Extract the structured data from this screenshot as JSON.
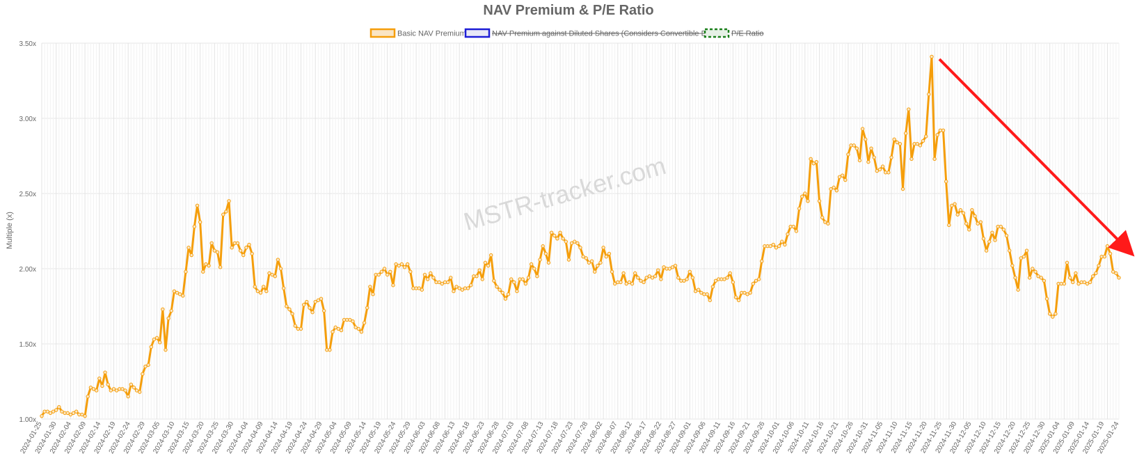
{
  "chart_data": {
    "type": "line",
    "title": "NAV Premium & P/E Ratio",
    "ylabel": "Multiple (x)",
    "xlabel": "",
    "ylim": [
      1.0,
      3.5
    ],
    "y_ticks": [
      "1.00x",
      "1.50x",
      "2.00x",
      "2.50x",
      "3.00x",
      "3.50x"
    ],
    "x_ticks": [
      "2024-01-25",
      "2024-01-30",
      "2024-02-04",
      "2024-02-09",
      "2024-02-14",
      "2024-02-19",
      "2024-02-24",
      "2024-02-29",
      "2024-03-05",
      "2024-03-10",
      "2024-03-15",
      "2024-03-20",
      "2024-03-25",
      "2024-03-30",
      "2024-04-04",
      "2024-04-09",
      "2024-04-14",
      "2024-04-19",
      "2024-04-24",
      "2024-04-29",
      "2024-05-04",
      "2024-05-09",
      "2024-05-14",
      "2024-05-19",
      "2024-05-24",
      "2024-05-29",
      "2024-06-03",
      "2024-06-08",
      "2024-06-13",
      "2024-06-18",
      "2024-06-23",
      "2024-06-28",
      "2024-07-03",
      "2024-07-08",
      "2024-07-13",
      "2024-07-18",
      "2024-07-23",
      "2024-07-28",
      "2024-08-02",
      "2024-08-07",
      "2024-08-12",
      "2024-08-17",
      "2024-08-22",
      "2024-08-27",
      "2024-09-01",
      "2024-09-06",
      "2024-09-11",
      "2024-09-16",
      "2024-09-21",
      "2024-09-26",
      "2024-10-01",
      "2024-10-06",
      "2024-10-11",
      "2024-10-16",
      "2024-10-21",
      "2024-10-26",
      "2024-10-31",
      "2024-11-05",
      "2024-11-10",
      "2024-11-15",
      "2024-11-20",
      "2024-11-25",
      "2024-11-30",
      "2024-12-05",
      "2024-12-10",
      "2024-12-15",
      "2024-12-20",
      "2024-12-25",
      "2024-12-30",
      "2025-01-04",
      "2025-01-09",
      "2025-01-14",
      "2025-01-19",
      "2025-01-24"
    ],
    "grid": true,
    "legend_position": "top-center",
    "watermark": "MSTR-tracker.com",
    "annotation": "red downward arrow from the late-November 2024 peak toward the right edge",
    "series": [
      {
        "name": "Basic NAV Premium",
        "color": "#f59e0b",
        "hidden": false,
        "values": [
          1.02,
          1.05,
          1.05,
          1.04,
          1.05,
          1.06,
          1.08,
          1.05,
          1.04,
          1.04,
          1.03,
          1.04,
          1.05,
          1.03,
          1.03,
          1.02,
          1.15,
          1.21,
          1.2,
          1.19,
          1.27,
          1.22,
          1.31,
          1.23,
          1.19,
          1.2,
          1.19,
          1.2,
          1.2,
          1.19,
          1.15,
          1.23,
          1.21,
          1.19,
          1.18,
          1.3,
          1.35,
          1.36,
          1.48,
          1.53,
          1.54,
          1.51,
          1.73,
          1.46,
          1.67,
          1.72,
          1.85,
          1.84,
          1.83,
          1.82,
          1.98,
          2.14,
          2.09,
          2.28,
          2.42,
          2.31,
          1.98,
          2.03,
          2.02,
          2.17,
          2.12,
          2.11,
          2.01,
          2.36,
          2.38,
          2.45,
          2.14,
          2.17,
          2.17,
          2.12,
          2.09,
          2.14,
          2.16,
          2.1,
          1.88,
          1.85,
          1.84,
          1.88,
          1.85,
          1.97,
          1.96,
          1.95,
          2.06,
          2.0,
          1.87,
          1.75,
          1.73,
          1.7,
          1.62,
          1.6,
          1.6,
          1.76,
          1.78,
          1.74,
          1.71,
          1.78,
          1.79,
          1.8,
          1.72,
          1.46,
          1.46,
          1.58,
          1.61,
          1.6,
          1.59,
          1.66,
          1.66,
          1.66,
          1.65,
          1.61,
          1.6,
          1.58,
          1.64,
          1.74,
          1.88,
          1.83,
          1.96,
          1.96,
          1.98,
          2.0,
          1.96,
          1.98,
          1.89,
          2.03,
          2.02,
          2.03,
          2.01,
          2.03,
          1.98,
          1.87,
          1.87,
          1.87,
          1.86,
          1.96,
          1.93,
          1.97,
          1.94,
          1.91,
          1.91,
          1.9,
          1.91,
          1.91,
          1.94,
          1.85,
          1.88,
          1.87,
          1.86,
          1.87,
          1.87,
          1.89,
          1.95,
          1.95,
          1.99,
          1.93,
          2.04,
          2.02,
          2.09,
          1.92,
          1.88,
          1.86,
          1.84,
          1.8,
          1.83,
          1.93,
          1.91,
          1.85,
          1.93,
          1.93,
          1.9,
          1.94,
          2.03,
          2.0,
          1.95,
          2.06,
          2.15,
          2.1,
          2.04,
          2.24,
          2.22,
          2.2,
          2.24,
          2.2,
          2.18,
          2.06,
          2.17,
          2.18,
          2.17,
          2.14,
          2.08,
          2.07,
          2.04,
          2.05,
          1.98,
          2.02,
          2.04,
          2.14,
          2.08,
          2.1,
          1.98,
          1.9,
          1.91,
          1.91,
          1.97,
          1.9,
          1.91,
          1.9,
          1.97,
          1.94,
          1.92,
          1.91,
          1.94,
          1.95,
          1.94,
          1.95,
          1.99,
          1.93,
          2.01,
          2.0,
          2.0,
          2.01,
          2.02,
          1.94,
          1.92,
          1.92,
          1.93,
          1.98,
          1.94,
          1.85,
          1.86,
          1.84,
          1.83,
          1.83,
          1.79,
          1.88,
          1.92,
          1.93,
          1.93,
          1.93,
          1.94,
          1.97,
          1.91,
          1.81,
          1.79,
          1.84,
          1.84,
          1.83,
          1.84,
          1.9,
          1.92,
          1.93,
          2.05,
          2.15,
          2.15,
          2.15,
          2.16,
          2.14,
          2.15,
          2.18,
          2.16,
          2.23,
          2.28,
          2.28,
          2.25,
          2.4,
          2.48,
          2.5,
          2.45,
          2.73,
          2.7,
          2.71,
          2.45,
          2.34,
          2.31,
          2.3,
          2.53,
          2.54,
          2.52,
          2.61,
          2.62,
          2.59,
          2.76,
          2.82,
          2.82,
          2.8,
          2.72,
          2.93,
          2.86,
          2.71,
          2.8,
          2.74,
          2.65,
          2.66,
          2.68,
          2.64,
          2.64,
          2.74,
          2.86,
          2.84,
          2.83,
          2.53,
          2.9,
          3.06,
          2.73,
          2.83,
          2.83,
          2.82,
          2.85,
          2.88,
          3.16,
          3.41,
          2.73,
          2.89,
          2.92,
          2.92,
          2.58,
          2.29,
          2.42,
          2.43,
          2.36,
          2.39,
          2.37,
          2.3,
          2.26,
          2.39,
          2.35,
          2.3,
          2.31,
          2.2,
          2.12,
          2.18,
          2.24,
          2.19,
          2.28,
          2.28,
          2.26,
          2.22,
          2.12,
          2.02,
          1.94,
          1.86,
          2.07,
          2.08,
          2.12,
          1.94,
          2.0,
          1.98,
          1.95,
          1.94,
          1.92,
          1.8,
          1.7,
          1.68,
          1.7,
          1.9,
          1.9,
          1.9,
          2.04,
          1.94,
          1.91,
          1.97,
          1.9,
          1.91,
          1.91,
          1.9,
          1.91,
          1.95,
          1.97,
          2.02,
          2.08,
          2.08,
          2.15,
          2.1,
          1.98,
          1.97,
          1.94
        ]
      },
      {
        "name": "NAV Premium against Diluted Shares (Considers Convertible Debt)",
        "color": "#1d1dd6",
        "hidden": true,
        "values": []
      },
      {
        "name": "P/E Ratio",
        "color": "#1a7f1a",
        "hidden": true,
        "values": []
      }
    ]
  },
  "colors": {
    "grid": "#e6e6e6",
    "axis_text": "#666666",
    "title": "#666666",
    "arrow": "#ff1a1a",
    "watermark": "#d9d9d9"
  }
}
